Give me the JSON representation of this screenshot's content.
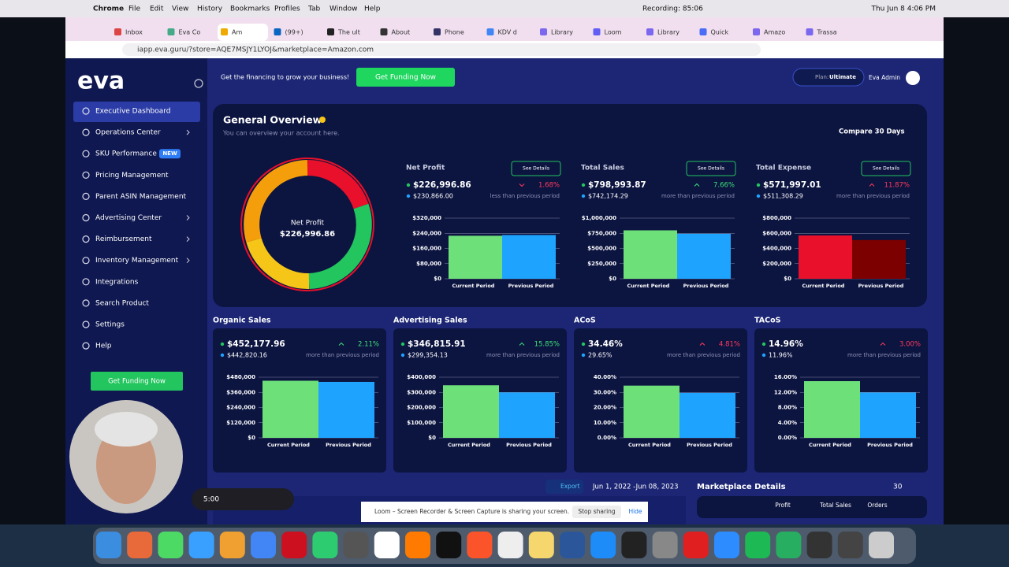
{
  "menubar": {
    "app": "Chrome",
    "items": [
      "File",
      "Edit",
      "View",
      "History",
      "Bookmarks",
      "Profiles",
      "Tab",
      "Window",
      "Help"
    ],
    "recording": "Recording: 85:06",
    "clock": "Thu Jun 8  4:06 PM"
  },
  "tabs": [
    "Inbox",
    "Eva Co",
    "Am",
    "(99+)",
    "The ult",
    "About",
    "Phone",
    "KDV d",
    "Library",
    "Loom",
    "Library",
    "Quick",
    "Amazo",
    "Trassa"
  ],
  "url": "iapp.eva.guru/?store=AQE7MSJY1LYOJ&marketplace=Amazon.com",
  "sidebar": {
    "logo": "eva",
    "items": [
      {
        "label": "Executive Dashboard",
        "active": true
      },
      {
        "label": "Operations Center",
        "submenu": true
      },
      {
        "label": "SKU Performance",
        "badge": "NEW"
      },
      {
        "label": "Pricing Management"
      },
      {
        "label": "Parent ASIN Management"
      },
      {
        "label": "Advertising Center",
        "submenu": true
      },
      {
        "label": "Reimbursement",
        "submenu": true
      },
      {
        "label": "Inventory Management",
        "submenu": true
      },
      {
        "label": "Integrations"
      },
      {
        "label": "Search Product"
      },
      {
        "label": "Settings"
      },
      {
        "label": "Help"
      }
    ],
    "button": "Get Funding Now"
  },
  "banner": {
    "text": "Get the financing to grow your business!",
    "button": "Get Funding Now",
    "plan_label": "Plan:",
    "plan": "Ultimate",
    "user": "Eva Admin"
  },
  "overview": {
    "title": "General Overview",
    "subtitle": "You can overview your account here.",
    "compare": "Compare 30 Days",
    "donut_label": "Net Profit",
    "donut_value": "$226,996.86"
  },
  "cards": [
    {
      "title": "Net Profit",
      "value": "$226,996.86",
      "previous": "$230,866.00",
      "change": "1.68%",
      "trend": "down",
      "change_color": "#ff3b5c",
      "note": "less than previous period",
      "button": "See Details",
      "chart": {
        "type": "bar",
        "categories": [
          "Current Period",
          "Previous Period"
        ],
        "values": [
          226996.86,
          230866
        ],
        "colors": [
          "#6ee07a",
          "#1ea4ff"
        ],
        "ylim": [
          0,
          320000
        ],
        "yticks": [
          {
            "value": 0,
            "label": "$0"
          },
          {
            "value": 80000,
            "label": "$80,000"
          },
          {
            "value": 160000,
            "label": "$160,000"
          },
          {
            "value": 240000,
            "label": "$240,000"
          },
          {
            "value": 320000,
            "label": "$320,000"
          }
        ]
      }
    },
    {
      "title": "Total Sales",
      "value": "$798,993.87",
      "previous": "$742,174.29",
      "change": "7.66%",
      "trend": "up",
      "change_color": "#3ee07a",
      "note": "more than previous period",
      "button": "See Details",
      "chart": {
        "type": "bar",
        "categories": [
          "Current Period",
          "Previous Period"
        ],
        "values": [
          798993.87,
          742174.29
        ],
        "colors": [
          "#6ee07a",
          "#1ea4ff"
        ],
        "ylim": [
          0,
          1000000
        ],
        "yticks": [
          {
            "value": 0,
            "label": "$0"
          },
          {
            "value": 250000,
            "label": "$250,000"
          },
          {
            "value": 500000,
            "label": "$500,000"
          },
          {
            "value": 750000,
            "label": "$750,000"
          },
          {
            "value": 1000000,
            "label": "$1,000,000"
          }
        ]
      }
    },
    {
      "title": "Total Expense",
      "value": "$571,997.01",
      "previous": "$511,308.29",
      "change": "11.87%",
      "trend": "up",
      "change_color": "#ff3b5c",
      "note": "more than previous period",
      "button": "See Details",
      "chart": {
        "type": "bar",
        "categories": [
          "Current Period",
          "Previous Period"
        ],
        "values": [
          571997.01,
          511308.29
        ],
        "colors": [
          "#e8102a",
          "#7d0000"
        ],
        "ylim": [
          0,
          800000
        ],
        "yticks": [
          {
            "value": 0,
            "label": "$0"
          },
          {
            "value": 200000,
            "label": "$200,000"
          },
          {
            "value": 400000,
            "label": "$400,000"
          },
          {
            "value": 600000,
            "label": "$600,000"
          },
          {
            "value": 800000,
            "label": "$800,000"
          }
        ]
      }
    },
    {
      "title": "Organic Sales",
      "value": "$452,177.96",
      "previous": "$442,820.16",
      "change": "2.11%",
      "trend": "up",
      "change_color": "#3ee07a",
      "note": "more than previous period",
      "chart": {
        "type": "bar",
        "categories": [
          "Current Period",
          "Previous Period"
        ],
        "values": [
          452177.96,
          442820.16
        ],
        "colors": [
          "#6ee07a",
          "#1ea4ff"
        ],
        "ylim": [
          0,
          480000
        ],
        "yticks": [
          {
            "value": 0,
            "label": "$0"
          },
          {
            "value": 120000,
            "label": "$120,000"
          },
          {
            "value": 240000,
            "label": "$240,000"
          },
          {
            "value": 360000,
            "label": "$360,000"
          },
          {
            "value": 480000,
            "label": "$480,000"
          }
        ]
      }
    },
    {
      "title": "Advertising Sales",
      "value": "$346,815.91",
      "previous": "$299,354.13",
      "change": "15.85%",
      "trend": "up",
      "change_color": "#3ee07a",
      "note": "more than previous period",
      "chart": {
        "type": "bar",
        "categories": [
          "Current Period",
          "Previous Period"
        ],
        "values": [
          346815.91,
          299354.13
        ],
        "colors": [
          "#6ee07a",
          "#1ea4ff"
        ],
        "ylim": [
          0,
          400000
        ],
        "yticks": [
          {
            "value": 0,
            "label": "$0"
          },
          {
            "value": 100000,
            "label": "$100,000"
          },
          {
            "value": 200000,
            "label": "$200,000"
          },
          {
            "value": 300000,
            "label": "$300,000"
          },
          {
            "value": 400000,
            "label": "$400,000"
          }
        ]
      }
    },
    {
      "title": "ACoS",
      "value": "34.46%",
      "previous": "29.65%",
      "change": "4.81%",
      "trend": "up",
      "change_color": "#ff3b5c",
      "note": "more than previous period",
      "chart": {
        "type": "bar",
        "categories": [
          "Current Period",
          "Previous Period"
        ],
        "values": [
          34.46,
          29.65
        ],
        "colors": [
          "#6ee07a",
          "#1ea4ff"
        ],
        "ylim": [
          0,
          40
        ],
        "yticks": [
          {
            "value": 0,
            "label": "0.00%"
          },
          {
            "value": 10,
            "label": "10.00%"
          },
          {
            "value": 20,
            "label": "20.00%"
          },
          {
            "value": 30,
            "label": "30.00%"
          },
          {
            "value": 40,
            "label": "40.00%"
          }
        ]
      }
    },
    {
      "title": "TACoS",
      "value": "14.96%",
      "previous": "11.96%",
      "change": "3.00%",
      "trend": "up",
      "change_color": "#ff3b5c",
      "note": "more than previous period",
      "chart": {
        "type": "bar",
        "categories": [
          "Current Period",
          "Previous Period"
        ],
        "values": [
          14.96,
          11.96
        ],
        "colors": [
          "#6ee07a",
          "#1ea4ff"
        ],
        "ylim": [
          0,
          16
        ],
        "yticks": [
          {
            "value": 0,
            "label": "0.00%"
          },
          {
            "value": 4,
            "label": "4.00%"
          },
          {
            "value": 8,
            "label": "8.00%"
          },
          {
            "value": 12,
            "label": "12.00%"
          },
          {
            "value": 16,
            "label": "16.00%"
          }
        ]
      }
    }
  ],
  "bottom": {
    "export": "Export",
    "date_range": "Jun 1, 2022 -Jun 08, 2023",
    "marketplace": "Marketplace Details",
    "count": "30",
    "columns": [
      "Profit",
      "Total Sales",
      "Orders"
    ]
  },
  "loom": {
    "text": "Loom – Screen Recorder & Screen Capture is sharing your screen.",
    "stop": "Stop sharing",
    "hide": "Hide",
    "timer": "5:00"
  }
}
